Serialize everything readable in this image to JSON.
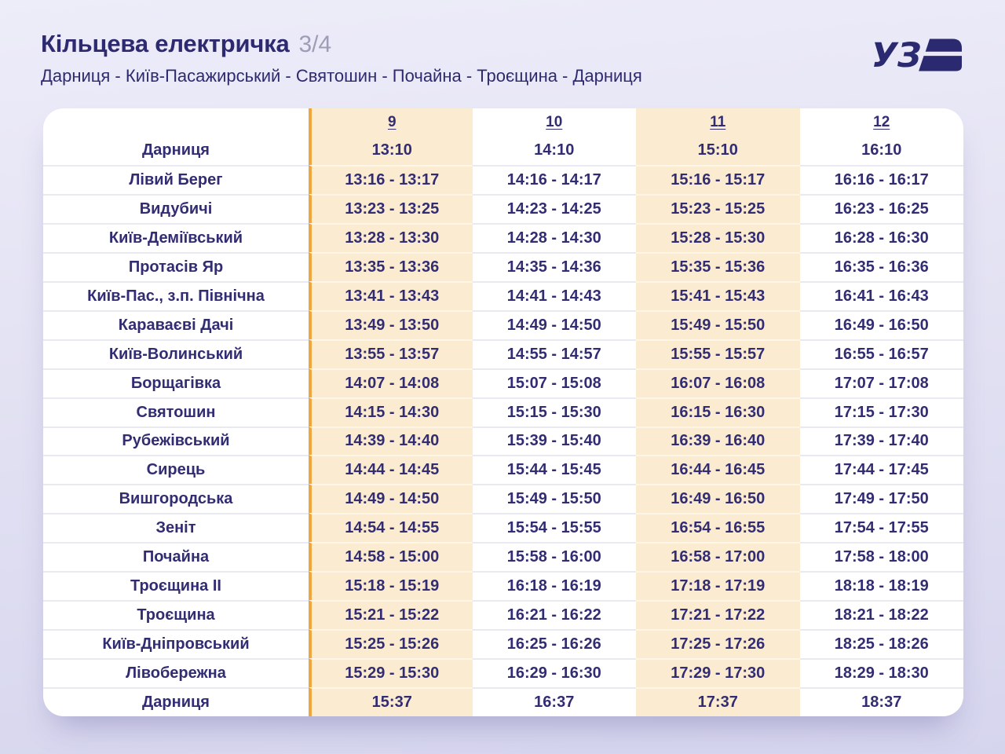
{
  "header": {
    "title": "Кільцева електричка",
    "page_indicator": "3/4",
    "route": "Дарниця - Київ-Пасажирський - Святошин - Почайна - Троєщина - Дарниця",
    "logo_text": "УЗ"
  },
  "colors": {
    "accent_orange": "#F0A63E",
    "highlight_cream": "#FBECD1",
    "text_navy": "#2E2A70",
    "indicator_gray": "#9E9DB6",
    "page_background": "#E0DFF1",
    "card_background": "#FFFFFF"
  },
  "timetable": {
    "trip_numbers": [
      "9",
      "10",
      "11",
      "12"
    ],
    "highlighted_trip_columns": [
      0,
      2
    ],
    "rows": [
      {
        "station": "Дарниця",
        "times": [
          "13:10",
          "14:10",
          "15:10",
          "16:10"
        ]
      },
      {
        "station": "Лівий Берег",
        "times": [
          "13:16 - 13:17",
          "14:16 - 14:17",
          "15:16 - 15:17",
          "16:16 - 16:17"
        ]
      },
      {
        "station": "Видубичі",
        "times": [
          "13:23 - 13:25",
          "14:23 - 14:25",
          "15:23 - 15:25",
          "16:23 - 16:25"
        ]
      },
      {
        "station": "Київ-Деміївський",
        "times": [
          "13:28 - 13:30",
          "14:28 - 14:30",
          "15:28 - 15:30",
          "16:28 - 16:30"
        ]
      },
      {
        "station": "Протасів Яр",
        "times": [
          "13:35 - 13:36",
          "14:35 - 14:36",
          "15:35 - 15:36",
          "16:35 - 16:36"
        ]
      },
      {
        "station": "Київ-Пас., з.п. Північна",
        "times": [
          "13:41 - 13:43",
          "14:41 - 14:43",
          "15:41 - 15:43",
          "16:41 - 16:43"
        ]
      },
      {
        "station": "Караваєві Дачі",
        "times": [
          "13:49 - 13:50",
          "14:49 - 14:50",
          "15:49 - 15:50",
          "16:49 - 16:50"
        ]
      },
      {
        "station": "Київ-Волинський",
        "times": [
          "13:55 - 13:57",
          "14:55 - 14:57",
          "15:55 - 15:57",
          "16:55 - 16:57"
        ]
      },
      {
        "station": "Борщагівка",
        "times": [
          "14:07 - 14:08",
          "15:07 - 15:08",
          "16:07 - 16:08",
          "17:07 - 17:08"
        ]
      },
      {
        "station": "Святошин",
        "times": [
          "14:15 - 14:30",
          "15:15 - 15:30",
          "16:15 - 16:30",
          "17:15 - 17:30"
        ]
      },
      {
        "station": "Рубежівський",
        "times": [
          "14:39 - 14:40",
          "15:39 - 15:40",
          "16:39 - 16:40",
          "17:39 - 17:40"
        ]
      },
      {
        "station": "Сирець",
        "times": [
          "14:44 - 14:45",
          "15:44 - 15:45",
          "16:44 - 16:45",
          "17:44 - 17:45"
        ]
      },
      {
        "station": "Вишгородська",
        "times": [
          "14:49 - 14:50",
          "15:49 - 15:50",
          "16:49 - 16:50",
          "17:49 - 17:50"
        ]
      },
      {
        "station": "Зеніт",
        "times": [
          "14:54 - 14:55",
          "15:54 - 15:55",
          "16:54 - 16:55",
          "17:54 - 17:55"
        ]
      },
      {
        "station": "Почайна",
        "times": [
          "14:58 - 15:00",
          "15:58 - 16:00",
          "16:58 - 17:00",
          "17:58 - 18:00"
        ]
      },
      {
        "station": "Троєщина II",
        "times": [
          "15:18 - 15:19",
          "16:18 - 16:19",
          "17:18 - 17:19",
          "18:18 - 18:19"
        ]
      },
      {
        "station": "Троєщина",
        "times": [
          "15:21 - 15:22",
          "16:21 - 16:22",
          "17:21 - 17:22",
          "18:21 - 18:22"
        ]
      },
      {
        "station": "Київ-Дніпровський",
        "times": [
          "15:25 - 15:26",
          "16:25 - 16:26",
          "17:25 - 17:26",
          "18:25 - 18:26"
        ]
      },
      {
        "station": "Лівобережна",
        "times": [
          "15:29 - 15:30",
          "16:29 - 16:30",
          "17:29 - 17:30",
          "18:29 - 18:30"
        ]
      },
      {
        "station": "Дарниця",
        "times": [
          "15:37",
          "16:37",
          "17:37",
          "18:37"
        ]
      }
    ]
  }
}
